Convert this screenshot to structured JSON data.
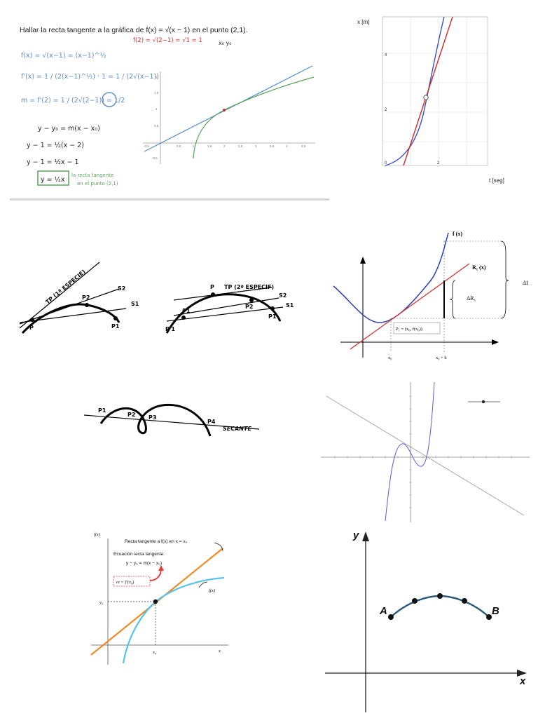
{
  "tile1": {
    "problem": "Hallar la recta tangente a la gráfica de f(x) = √(x − 1) en el punto (2,1).",
    "red_note": "f(2) = √(2−1) = √1 = 1",
    "xy_note": "x₀ y₀",
    "steps": [
      "f(x) = √(x−1) = (x−1)^½",
      "f'(x) = 1 / (2(x−1)^½) · 1 = 1 / (2√(x−1))",
      "m = f'(2) = 1 / (2√(2−1)) = 1/2",
      "y − y₀ = m(x − x₀)",
      "y − 1 = ½(x − 2)",
      "y − 1 = ½x − 1",
      "y = ½x"
    ],
    "green_note_1": "la recta tangente",
    "green_note_2": "en el punto (2,1)",
    "y_ticks": [
      "2",
      "1.5",
      "1",
      "0.5",
      "-0.5"
    ],
    "x_ticks": [
      "-0.5",
      "0.5",
      "1",
      "1.5",
      "2",
      "2.5",
      "3",
      "3.5",
      "4",
      "4.5"
    ],
    "colors": {
      "blue": "#5b8cc6",
      "green": "#5aa35a",
      "red": "#d03030"
    }
  },
  "tile2": {
    "y_axis": "x [m]",
    "x_axis": "t [seg]",
    "y_ticks": [
      "4",
      "2",
      "0"
    ],
    "x_ticks": [
      "2"
    ]
  },
  "tile3": {
    "label_tp": "TP (1ª ESPECIE)",
    "p": "P",
    "p2": "P2",
    "p1": "P1",
    "s2": "S2",
    "s1": "S1"
  },
  "tile4": {
    "label_tp": "TP (2ª ESPECIF)",
    "p": "P",
    "p1": "P1",
    "p1b": "P'1",
    "p2": "P2",
    "s2": "S2",
    "s1": "S1"
  },
  "tile5": {
    "fx": "f (x)",
    "r": "R₁ (x)",
    "delta": "ΔR₁",
    "big": "ΔI",
    "pt": "P₁ = (x₀, f(x₀))",
    "x0": "x₀",
    "x0h": "x₀ + h"
  },
  "tile6": {
    "p1": "P1",
    "p2": "P2",
    "p3": "P3",
    "p4": "P4",
    "secante": "SECANTE"
  },
  "tile8": {
    "y_axis": "f(x)",
    "title": "Recta tangente a f(x) en x = x₀",
    "eq_title": "Ecuación recta tangente:",
    "eq": "y − y₀ = m(x − x₀)",
    "m": "m = f'(x₀)",
    "fx": "f(x)",
    "y0": "y₀",
    "x0": "x₀",
    "x": "x"
  },
  "tile9": {
    "y": "y",
    "x": "x",
    "a": "A",
    "b": "B"
  }
}
